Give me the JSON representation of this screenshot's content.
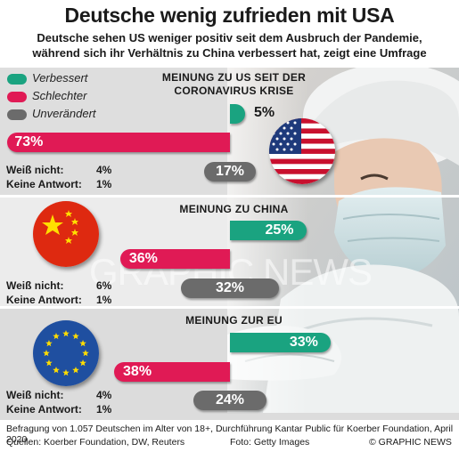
{
  "header": {
    "title": "Deutsche wenig zufrieden mit USA",
    "subtitle_line1": "Deutsche sehen US weniger positiv seit dem Ausbruch der Pandemie,",
    "subtitle_line2": "während sich ihr Verhältnis zu China verbessert hat, zeigt eine Umfrage"
  },
  "legend": {
    "improved": "Verbessert",
    "worse": "Schlechter",
    "unchanged": "Unverändert"
  },
  "colors": {
    "improved": "#1aa380",
    "worse": "#e01a55",
    "unchanged": "#6b6b6b",
    "panel_usa": "#dcdcdc",
    "panel_china": "#ebebeb",
    "panel_eu": "#d9d9d9"
  },
  "icons": {
    "usa": "usa-flag-icon",
    "china": "china-flag-icon",
    "eu": "eu-flag-icon"
  },
  "chart_data": [
    {
      "type": "bar",
      "title": "MEINUNG ZU US SEIT DER CORONAVIRUS KRISE",
      "title_line1": "MEINUNG ZU US SEIT DER",
      "title_line2": "CORONAVIRUS KRISE",
      "categories": [
        "Verbessert",
        "Schlechter",
        "Unverändert"
      ],
      "values": [
        5,
        73,
        17
      ],
      "labels": [
        "5%",
        "73%",
        "17%"
      ],
      "dont_know_label": "Weiß nicht:",
      "dont_know_value": "4%",
      "no_answer_label": "Keine Antwort:",
      "no_answer_value": "1%"
    },
    {
      "type": "bar",
      "title": "MEINUNG ZU CHINA",
      "categories": [
        "Verbessert",
        "Schlechter",
        "Unverändert"
      ],
      "values": [
        25,
        36,
        32
      ],
      "labels": [
        "25%",
        "36%",
        "32%"
      ],
      "dont_know_label": "Weiß nicht:",
      "dont_know_value": "6%",
      "no_answer_label": "Keine Antwort:",
      "no_answer_value": "1%"
    },
    {
      "type": "bar",
      "title": "MEINUNG ZUR EU",
      "categories": [
        "Verbessert",
        "Schlechter",
        "Unverändert"
      ],
      "values": [
        33,
        38,
        24
      ],
      "labels": [
        "33%",
        "38%",
        "24%"
      ],
      "dont_know_label": "Weiß nicht:",
      "dont_know_value": "4%",
      "no_answer_label": "Keine Antwort:",
      "no_answer_value": "1%"
    }
  ],
  "footer": {
    "survey": "Befragung von 1.057 Deutschen im Alter von 18+, Durchführung Kantar Public für Koerber Foundation, April 2020",
    "sources": "Quellen: Koerber Foundation, DW, Reuters",
    "photo": "Foto: Getty Images",
    "copyright": "© GRAPHIC NEWS"
  },
  "watermark": "GRAPHIC NEWS"
}
